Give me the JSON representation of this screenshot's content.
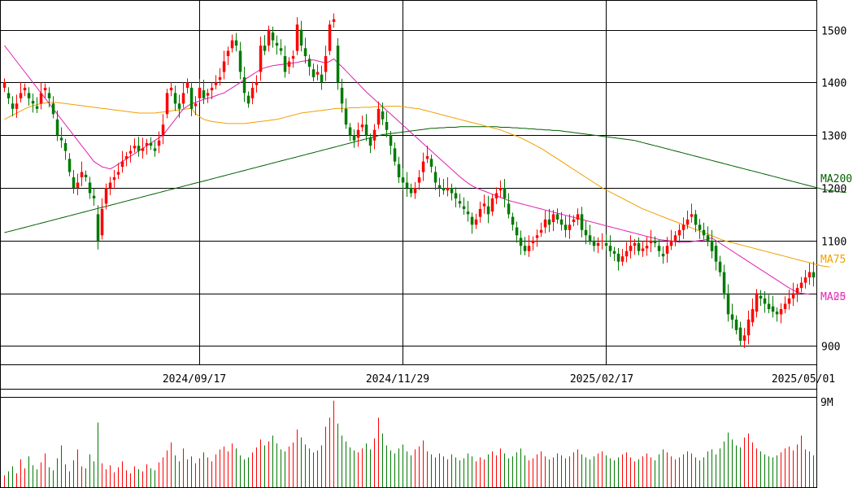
{
  "chart_data": {
    "type": "candlestick",
    "price_axis": {
      "ticks": [
        900,
        1000,
        1100,
        1200,
        1300,
        1400,
        1500
      ],
      "min": 865,
      "max": 1555,
      "tick_labels": [
        "900",
        "",
        "1100",
        "1200",
        "1300",
        "1400",
        "1500"
      ]
    },
    "date_labels": [
      "2024/09/17",
      "2024/11/29",
      "2025/02/17",
      "2025/05/01"
    ],
    "volume_axis": {
      "label": "9M",
      "max": 9000000
    },
    "legend": {
      "ma200": "MA200",
      "ma75": "MA75",
      "ma25": "MA25",
      "ma_overlap": "MA00"
    },
    "colors": {
      "up": "#ff0000",
      "down": "#007a00",
      "ma25": "#e020b0",
      "ma75": "#f0a000",
      "ma200": "#006000",
      "grid": "#000000"
    },
    "grid": true,
    "series": {
      "closes": [
        1400,
        1370,
        1350,
        1360,
        1380,
        1390,
        1370,
        1360,
        1350,
        1380,
        1390,
        1370,
        1340,
        1300,
        1290,
        1270,
        1230,
        1200,
        1210,
        1230,
        1220,
        1190,
        1180,
        1100,
        1160,
        1200,
        1210,
        1220,
        1230,
        1250,
        1260,
        1270,
        1280,
        1270,
        1275,
        1285,
        1280,
        1270,
        1290,
        1320,
        1380,
        1390,
        1360,
        1350,
        1380,
        1400,
        1350,
        1360,
        1390,
        1370,
        1380,
        1390,
        1400,
        1410,
        1440,
        1460,
        1480,
        1470,
        1420,
        1380,
        1360,
        1390,
        1400,
        1470,
        1460,
        1500,
        1480,
        1470,
        1460,
        1420,
        1440,
        1450,
        1510,
        1470,
        1450,
        1430,
        1410,
        1420,
        1400,
        1450,
        1510,
        1520,
        1400,
        1360,
        1320,
        1300,
        1290,
        1310,
        1320,
        1300,
        1280,
        1310,
        1350,
        1330,
        1310,
        1280,
        1250,
        1220,
        1210,
        1200,
        1190,
        1200,
        1220,
        1250,
        1260,
        1240,
        1210,
        1200,
        1195,
        1200,
        1190,
        1180,
        1170,
        1160,
        1150,
        1130,
        1140,
        1160,
        1170,
        1150,
        1180,
        1190,
        1200,
        1180,
        1150,
        1130,
        1110,
        1090,
        1080,
        1090,
        1100,
        1110,
        1120,
        1140,
        1130,
        1150,
        1140,
        1130,
        1120,
        1130,
        1140,
        1150,
        1120,
        1110,
        1100,
        1090,
        1095,
        1100,
        1090,
        1080,
        1075,
        1060,
        1070,
        1080,
        1090,
        1095,
        1080,
        1085,
        1090,
        1100,
        1095,
        1080,
        1070,
        1090,
        1100,
        1110,
        1120,
        1130,
        1140,
        1150,
        1130,
        1120,
        1110,
        1100,
        1080,
        1060,
        1040,
        1000,
        960,
        950,
        930,
        910,
        920,
        950,
        970,
        1000,
        990,
        980,
        970,
        965,
        960,
        970,
        980,
        990,
        1000,
        1010,
        1020,
        1030,
        1040,
        1030
      ],
      "opens": [
        1390,
        1380,
        1360,
        1350,
        1370,
        1385,
        1380,
        1365,
        1355,
        1360,
        1385,
        1380,
        1360,
        1330,
        1295,
        1285,
        1255,
        1220,
        1200,
        1220,
        1225,
        1210,
        1185,
        1150,
        1110,
        1170,
        1200,
        1215,
        1225,
        1240,
        1255,
        1265,
        1275,
        1280,
        1270,
        1280,
        1285,
        1275,
        1280,
        1300,
        1340,
        1385,
        1380,
        1360,
        1360,
        1390,
        1390,
        1355,
        1370,
        1385,
        1375,
        1385,
        1395,
        1405,
        1420,
        1450,
        1465,
        1480,
        1460,
        1410,
        1375,
        1370,
        1395,
        1420,
        1470,
        1470,
        1495,
        1475,
        1465,
        1450,
        1430,
        1445,
        1460,
        1500,
        1465,
        1445,
        1425,
        1415,
        1415,
        1420,
        1460,
        1515,
        1470,
        1390,
        1350,
        1315,
        1300,
        1295,
        1315,
        1320,
        1295,
        1290,
        1320,
        1345,
        1325,
        1300,
        1275,
        1245,
        1220,
        1210,
        1200,
        1190,
        1210,
        1230,
        1255,
        1255,
        1230,
        1205,
        1200,
        1195,
        1200,
        1190,
        1175,
        1165,
        1155,
        1145,
        1130,
        1145,
        1165,
        1165,
        1155,
        1180,
        1195,
        1200,
        1170,
        1145,
        1125,
        1105,
        1090,
        1080,
        1095,
        1105,
        1115,
        1125,
        1140,
        1135,
        1150,
        1140,
        1130,
        1120,
        1135,
        1140,
        1150,
        1120,
        1110,
        1100,
        1090,
        1100,
        1095,
        1090,
        1080,
        1075,
        1060,
        1070,
        1080,
        1090,
        1095,
        1080,
        1085,
        1095,
        1100,
        1090,
        1075,
        1075,
        1090,
        1100,
        1110,
        1120,
        1130,
        1145,
        1150,
        1130,
        1120,
        1110,
        1100,
        1090,
        1060,
        1040,
        1000,
        960,
        950,
        935,
        910,
        920,
        945,
        965,
        995,
        990,
        980,
        975,
        965,
        960,
        970,
        980,
        990,
        1000,
        1010,
        1020,
        1030,
        1040
      ],
      "ma25": [
        1470,
        1460,
        1450,
        1440,
        1430,
        1420,
        1410,
        1400,
        1390,
        1380,
        1370,
        1360,
        1350,
        1340,
        1330,
        1320,
        1310,
        1300,
        1290,
        1280,
        1270,
        1260,
        1250,
        1245,
        1240,
        1238,
        1236,
        1240,
        1245,
        1250,
        1255,
        1260,
        1265,
        1270,
        1275,
        1280,
        1285,
        1290,
        1295,
        1300,
        1310,
        1320,
        1330,
        1340,
        1350,
        1355,
        1360,
        1362,
        1365,
        1368,
        1370,
        1372,
        1375,
        1378,
        1380,
        1385,
        1390,
        1395,
        1400,
        1405,
        1410,
        1415,
        1420,
        1425,
        1428,
        1430,
        1432,
        1433,
        1434,
        1435,
        1436,
        1437,
        1438,
        1440,
        1441,
        1442,
        1443,
        1441,
        1439,
        1437,
        1440,
        1445,
        1437,
        1430,
        1422,
        1414,
        1406,
        1398,
        1390,
        1382,
        1375,
        1368,
        1361,
        1354,
        1347,
        1340,
        1333,
        1326,
        1319,
        1312,
        1305,
        1298,
        1291,
        1284,
        1277,
        1270,
        1263,
        1256,
        1249,
        1242,
        1235,
        1228,
        1221,
        1215,
        1209,
        1204,
        1200,
        1197,
        1194,
        1191,
        1188,
        1185,
        1182,
        1179,
        1176,
        1174,
        1172,
        1170,
        1168,
        1166,
        1164,
        1162,
        1160,
        1158,
        1156,
        1154,
        1152,
        1150,
        1148,
        1146,
        1144,
        1142,
        1140,
        1138,
        1136,
        1134,
        1132,
        1130,
        1128,
        1126,
        1124,
        1122,
        1120,
        1118,
        1116,
        1114,
        1112,
        1110,
        1108,
        1106,
        1104,
        1102,
        1101,
        1100,
        1099,
        1098,
        1097,
        1097,
        1097,
        1098,
        1099,
        1100,
        1101,
        1103,
        1105,
        1100,
        1095,
        1090,
        1085,
        1080,
        1075,
        1070,
        1065,
        1060,
        1055,
        1050,
        1045,
        1040,
        1035,
        1030,
        1025,
        1020,
        1015,
        1010,
        1006,
        1002,
        1000,
        999,
        998
      ],
      "ma75": [
        1330,
        1334,
        1338,
        1342,
        1346,
        1350,
        1353,
        1356,
        1358,
        1360,
        1361,
        1362,
        1362,
        1362,
        1361,
        1360,
        1359,
        1358,
        1357,
        1356,
        1355,
        1354,
        1353,
        1352,
        1351,
        1350,
        1349,
        1348,
        1347,
        1346,
        1345,
        1344,
        1343,
        1342,
        1342,
        1342,
        1342,
        1342,
        1343,
        1344,
        1345,
        1346,
        1347,
        1348,
        1349,
        1350,
        1351,
        1341,
        1335,
        1330,
        1328,
        1326,
        1325,
        1324,
        1323,
        1322,
        1322,
        1322,
        1322,
        1322,
        1323,
        1324,
        1325,
        1326,
        1327,
        1328,
        1329,
        1330,
        1332,
        1334,
        1336,
        1338,
        1340,
        1342,
        1343,
        1344,
        1345,
        1346,
        1347,
        1348,
        1349,
        1350,
        1351,
        1351,
        1351,
        1352,
        1352,
        1352,
        1353,
        1353,
        1353,
        1354,
        1354,
        1354,
        1355,
        1355,
        1355,
        1355,
        1354,
        1353,
        1352,
        1351,
        1350,
        1348,
        1346,
        1344,
        1342,
        1340,
        1338,
        1336,
        1334,
        1332,
        1330,
        1328,
        1326,
        1324,
        1322,
        1320,
        1318,
        1316,
        1314,
        1312,
        1310,
        1307,
        1304,
        1301,
        1298,
        1295,
        1291,
        1287,
        1283,
        1279,
        1275,
        1270,
        1265,
        1260,
        1255,
        1250,
        1245,
        1240,
        1235,
        1230,
        1225,
        1220,
        1215,
        1210,
        1205,
        1200,
        1196,
        1192,
        1188,
        1184,
        1180,
        1176,
        1172,
        1168,
        1164,
        1160,
        1157,
        1154,
        1151,
        1148,
        1145,
        1142,
        1139,
        1136,
        1133,
        1130,
        1127,
        1124,
        1121,
        1118,
        1115,
        1112,
        1109,
        1106,
        1103,
        1100,
        1098,
        1096,
        1094,
        1092,
        1090,
        1088,
        1086,
        1084,
        1082,
        1080,
        1078,
        1076,
        1074,
        1072,
        1070,
        1068,
        1066,
        1064,
        1062,
        1060,
        1058,
        1056,
        1054,
        1052,
        1051,
        1050
      ],
      "ma200": [
        1115,
        1117,
        1119,
        1121,
        1123,
        1125,
        1127,
        1129,
        1131,
        1133,
        1135,
        1137,
        1139,
        1141,
        1143,
        1145,
        1147,
        1149,
        1151,
        1153,
        1155,
        1157,
        1159,
        1161,
        1163,
        1165,
        1167,
        1169,
        1171,
        1173,
        1175,
        1177,
        1179,
        1181,
        1183,
        1185,
        1187,
        1189,
        1191,
        1193,
        1195,
        1197,
        1199,
        1201,
        1203,
        1205,
        1207,
        1209,
        1211,
        1213,
        1215,
        1217,
        1219,
        1221,
        1223,
        1225,
        1227,
        1229,
        1231,
        1233,
        1235,
        1237,
        1239,
        1241,
        1243,
        1245,
        1247,
        1249,
        1251,
        1253,
        1255,
        1257,
        1259,
        1261,
        1263,
        1265,
        1267,
        1269,
        1271,
        1273,
        1275,
        1277,
        1279,
        1281,
        1283,
        1285,
        1287,
        1289,
        1291,
        1293,
        1295,
        1297,
        1299,
        1301,
        1302,
        1303,
        1304,
        1305,
        1306,
        1307,
        1308,
        1309,
        1310,
        1311,
        1312,
        1313,
        1313,
        1314,
        1314,
        1315,
        1315,
        1315,
        1316,
        1316,
        1316,
        1316,
        1316,
        1316,
        1316,
        1316,
        1316,
        1316,
        1315,
        1315,
        1315,
        1314,
        1314,
        1313,
        1313,
        1312,
        1312,
        1311,
        1311,
        1310,
        1310,
        1309,
        1309,
        1308,
        1307,
        1306,
        1305,
        1304,
        1303,
        1302,
        1301,
        1300,
        1299,
        1298,
        1297,
        1296,
        1295,
        1294,
        1293,
        1292,
        1291,
        1290,
        1288,
        1286,
        1284,
        1282,
        1280,
        1278,
        1276,
        1274,
        1272,
        1270,
        1268,
        1266,
        1264,
        1262,
        1260,
        1258,
        1256,
        1254,
        1252,
        1250,
        1248,
        1246,
        1244,
        1242,
        1240,
        1238,
        1236,
        1234,
        1232,
        1230,
        1228,
        1226,
        1224,
        1222,
        1220,
        1218,
        1216,
        1214,
        1212,
        1210,
        1208,
        1206,
        1204,
        1202,
        1200,
        1198,
        1196,
        1195,
        1194,
        1193,
        1192,
        1191
      ],
      "volumes": [
        1.2,
        1.6,
        2.1,
        1.4,
        2.8,
        1.9,
        3.1,
        2.2,
        1.8,
        2.5,
        3.4,
        2.0,
        1.7,
        2.9,
        4.2,
        2.3,
        1.6,
        2.7,
        3.8,
        2.1,
        1.9,
        3.3,
        2.6,
        6.5,
        2.4,
        1.8,
        2.2,
        1.5,
        2.0,
        2.6,
        1.7,
        1.4,
        2.1,
        1.8,
        1.6,
        2.3,
        1.9,
        1.7,
        2.5,
        3.0,
        3.7,
        4.5,
        3.2,
        2.6,
        3.9,
        2.8,
        3.1,
        2.4,
        2.9,
        3.5,
        3.0,
        2.6,
        3.3,
        3.8,
        4.1,
        3.6,
        4.4,
        3.9,
        3.2,
        2.8,
        3.0,
        3.5,
        4.0,
        4.8,
        4.2,
        4.6,
        5.2,
        4.4,
        3.8,
        3.6,
        4.1,
        4.5,
        5.8,
        5.0,
        4.3,
        3.9,
        3.5,
        3.7,
        4.2,
        6.1,
        7.0,
        8.7,
        6.4,
        5.2,
        4.6,
        4.0,
        3.7,
        3.5,
        3.9,
        4.4,
        3.8,
        4.9,
        7.0,
        5.4,
        4.2,
        3.7,
        3.4,
        3.9,
        4.3,
        3.6,
        3.2,
        3.8,
        4.1,
        4.7,
        3.6,
        3.3,
        3.0,
        3.4,
        3.1,
        2.8,
        3.3,
        3.0,
        2.7,
        2.9,
        3.4,
        3.1,
        2.6,
        3.0,
        2.8,
        3.3,
        3.6,
        3.2,
        3.9,
        3.4,
        2.9,
        3.1,
        3.5,
        3.9,
        3.2,
        2.7,
        2.9,
        3.3,
        3.6,
        3.1,
        2.8,
        3.0,
        3.4,
        3.2,
        2.9,
        3.1,
        3.5,
        3.8,
        3.3,
        3.0,
        2.8,
        3.1,
        3.4,
        3.6,
        3.2,
        2.9,
        2.7,
        3.0,
        3.3,
        3.5,
        3.0,
        2.6,
        2.8,
        3.1,
        3.4,
        3.0,
        2.7,
        3.3,
        3.8,
        3.5,
        3.1,
        2.8,
        3.0,
        3.3,
        3.6,
        3.4,
        3.0,
        2.7,
        3.0,
        3.6,
        3.8,
        3.3,
        3.9,
        4.6,
        5.5,
        4.8,
        4.2,
        4.0,
        5.0,
        5.4,
        4.5,
        3.9,
        3.6,
        3.3,
        3.1,
        3.0,
        3.2,
        3.5,
        3.9,
        4.1,
        3.7,
        4.3,
        5.2,
        3.8,
        3.6,
        3.2
      ]
    }
  }
}
